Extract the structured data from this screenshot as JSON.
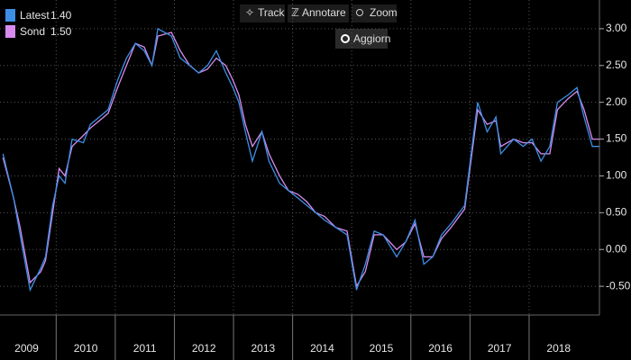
{
  "toolbar": {
    "buttons": [
      "Track",
      "Annotare",
      "Zoom"
    ],
    "refresh": "Aggiorn"
  },
  "chart_data": {
    "type": "line",
    "x": [
      2009.1,
      2009.28,
      2009.39,
      2009.56,
      2009.74,
      2009.82,
      2009.94,
      2010.05,
      2010.15,
      2010.27,
      2010.46,
      2010.58,
      2010.73,
      2010.88,
      2011.04,
      2011.19,
      2011.34,
      2011.49,
      2011.62,
      2011.72,
      2011.95,
      2012.1,
      2012.26,
      2012.41,
      2012.56,
      2012.71,
      2012.87,
      2012.99,
      2013.09,
      2013.2,
      2013.32,
      2013.48,
      2013.6,
      2013.78,
      2013.93,
      2014.09,
      2014.24,
      2014.39,
      2014.54,
      2014.73,
      2014.92,
      2015.08,
      2015.23,
      2015.38,
      2015.53,
      2015.76,
      2015.91,
      2016.07,
      2016.22,
      2016.37,
      2016.52,
      2016.68,
      2016.91,
      2017.13,
      2017.29,
      2017.44,
      2017.52,
      2017.74,
      2017.9,
      2018.05,
      2018.2,
      2018.35,
      2018.48,
      2018.66,
      2018.81,
      2018.93,
      2019.07,
      2019.19
    ],
    "series": [
      {
        "name": "Latest",
        "legend_value": "1.40",
        "color": "#3d8fe6",
        "values": [
          1.3,
          0.7,
          0.2,
          -0.55,
          -0.25,
          -0.1,
          0.6,
          1.0,
          0.9,
          1.5,
          1.45,
          1.7,
          1.8,
          1.9,
          2.3,
          2.6,
          2.8,
          2.7,
          2.5,
          3.0,
          2.9,
          2.6,
          2.5,
          2.4,
          2.5,
          2.7,
          2.4,
          2.2,
          2.0,
          1.6,
          1.2,
          1.6,
          1.2,
          0.9,
          0.8,
          0.7,
          0.6,
          0.5,
          0.4,
          0.3,
          0.2,
          -0.55,
          -0.2,
          0.25,
          0.2,
          -0.1,
          0.1,
          0.4,
          -0.2,
          -0.1,
          0.2,
          0.35,
          0.6,
          2.0,
          1.6,
          1.8,
          1.3,
          1.5,
          1.4,
          1.5,
          1.2,
          1.4,
          2.0,
          2.1,
          2.2,
          1.8,
          1.4,
          1.4
        ]
      },
      {
        "name": "Sond",
        "legend_value": "1.50",
        "color": "#d88cf0",
        "values": [
          1.25,
          0.7,
          0.3,
          -0.45,
          -0.3,
          -0.15,
          0.5,
          1.1,
          1.0,
          1.4,
          1.55,
          1.65,
          1.75,
          1.85,
          2.2,
          2.5,
          2.8,
          2.75,
          2.5,
          2.9,
          2.95,
          2.7,
          2.5,
          2.4,
          2.45,
          2.6,
          2.5,
          2.3,
          2.1,
          1.7,
          1.4,
          1.6,
          1.3,
          1.0,
          0.8,
          0.75,
          0.65,
          0.5,
          0.45,
          0.3,
          0.25,
          -0.5,
          -0.3,
          0.2,
          0.2,
          0.0,
          0.1,
          0.35,
          -0.1,
          -0.1,
          0.15,
          0.3,
          0.55,
          1.9,
          1.7,
          1.75,
          1.4,
          1.5,
          1.45,
          1.45,
          1.3,
          1.3,
          1.9,
          2.05,
          2.15,
          1.9,
          1.5,
          1.5
        ]
      }
    ],
    "xlim": [
      2009.05,
      2019.19
    ],
    "xticks": [
      2009,
      2010,
      2011,
      2012,
      2013,
      2014,
      2015,
      2016,
      2017,
      2018
    ],
    "ylim": [
      -0.89,
      3.39
    ],
    "yticks": [
      {
        "value": -0.5,
        "label": "-0.50"
      },
      {
        "value": 0,
        "label": "0.00"
      },
      {
        "value": 0.5,
        "label": "0.50"
      },
      {
        "value": 1,
        "label": "1.00"
      },
      {
        "value": 1.5,
        "label": "1.50"
      },
      {
        "value": 2,
        "label": "2.00"
      },
      {
        "value": 2.5,
        "label": "2.50"
      },
      {
        "value": 3,
        "label": "3.00"
      }
    ],
    "grid": true
  }
}
